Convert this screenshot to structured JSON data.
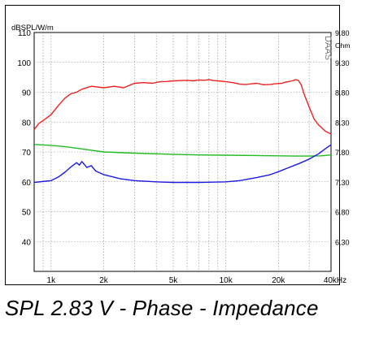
{
  "caption": "SPL 2.83 V - Phase - Impedance",
  "chart_data": {
    "type": "line",
    "left_axis_unit": "dBSPL/W/m",
    "right_axis_unit": "Ohm",
    "watermark": "DAAS",
    "x_scale": "log",
    "xlim": [
      800,
      40000
    ],
    "x_tick_labels": [
      {
        "value": 1000,
        "label": "1k"
      },
      {
        "value": 2000,
        "label": "2k"
      },
      {
        "value": 5000,
        "label": "5k"
      },
      {
        "value": 10000,
        "label": "10k"
      },
      {
        "value": 20000,
        "label": "20k"
      },
      {
        "value": 40000,
        "label": "40kHz"
      }
    ],
    "ylim": [
      30,
      110
    ],
    "y_ticks": [
      110,
      100,
      90,
      80,
      70,
      60,
      50,
      40
    ],
    "right_ylim": [
      5.8,
      9.8
    ],
    "right_ticks": [
      "9.80",
      "9.30",
      "8.80",
      "8.30",
      "7.80",
      "7.30",
      "6.80",
      "6.30"
    ],
    "grid": true,
    "colors": {
      "spl": "#ee2222",
      "phase": "#22bb22",
      "impedance": "#1a1ae0"
    },
    "series": [
      {
        "key": "spl",
        "axis": "left",
        "x": [
          800,
          850,
          900,
          1000,
          1100,
          1200,
          1300,
          1400,
          1500,
          1700,
          2000,
          2300,
          2600,
          3000,
          3400,
          3800,
          4200,
          4600,
          5000,
          5500,
          6000,
          6500,
          7000,
          7500,
          8000,
          8500,
          9000,
          10000,
          11000,
          12000,
          13000,
          14000,
          15000,
          16500,
          18000,
          19000,
          20000,
          21000,
          22000,
          23000,
          24000,
          25000,
          26000,
          27000,
          28000,
          30000,
          32000,
          34000,
          37000,
          40000
        ],
        "y": [
          77.5,
          79.5,
          80.5,
          82.5,
          85.5,
          88,
          89.5,
          90,
          91,
          92,
          91.5,
          92,
          91.5,
          93,
          93.2,
          93,
          93.5,
          93.6,
          93.8,
          93.9,
          94,
          93.8,
          94.1,
          94,
          94.2,
          93.9,
          93.8,
          93.5,
          93.2,
          92.7,
          92.6,
          92.8,
          93,
          92.5,
          92.6,
          92.8,
          92.9,
          93,
          93.4,
          93.6,
          93.8,
          94.2,
          94,
          92.5,
          89.5,
          85,
          81,
          79,
          77,
          76
        ]
      },
      {
        "key": "phase",
        "axis": "left",
        "x": [
          800,
          1000,
          1200,
          1500,
          2000,
          3000,
          5000,
          7000,
          10000,
          15000,
          20000,
          25000,
          30000,
          35000,
          40000
        ],
        "y": [
          72.5,
          72.2,
          71.8,
          71,
          70,
          69.6,
          69.2,
          69,
          68.9,
          68.8,
          68.7,
          68.6,
          68.6,
          68.7,
          69
        ]
      },
      {
        "key": "impedance",
        "axis": "right",
        "x": [
          800,
          1000,
          1100,
          1200,
          1300,
          1400,
          1450,
          1500,
          1600,
          1700,
          1800,
          2000,
          2500,
          3000,
          4000,
          5000,
          7000,
          10000,
          12000,
          15000,
          18000,
          20000,
          23000,
          26000,
          30000,
          34000,
          37000,
          40000
        ],
        "y": [
          7.29,
          7.32,
          7.38,
          7.46,
          7.55,
          7.62,
          7.58,
          7.64,
          7.54,
          7.57,
          7.48,
          7.42,
          7.35,
          7.32,
          7.3,
          7.29,
          7.29,
          7.3,
          7.32,
          7.37,
          7.42,
          7.47,
          7.54,
          7.6,
          7.68,
          7.77,
          7.85,
          7.92
        ]
      }
    ]
  }
}
